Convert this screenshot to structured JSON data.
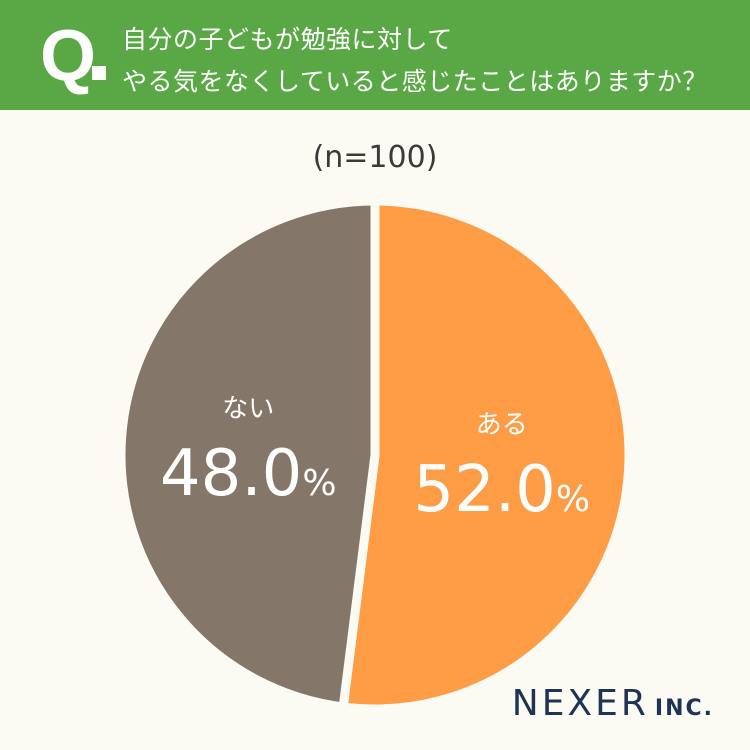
{
  "header": {
    "q_mark": "Q",
    "question_line1": "自分の子どもが勉強に対して",
    "question_line2": "やる気をなくしていると感じたことはありますか？"
  },
  "sample_size": "(n=100)",
  "chart_data": {
    "type": "pie",
    "categories": [
      "ある",
      "ない"
    ],
    "values": [
      52.0,
      48.0
    ],
    "value_labels": [
      "52.0",
      "48.0"
    ],
    "unit": "%",
    "colors": [
      "#ff9c46",
      "#847769"
    ]
  },
  "branding": {
    "logo_main": "NEXER",
    "logo_sub": "INC."
  }
}
